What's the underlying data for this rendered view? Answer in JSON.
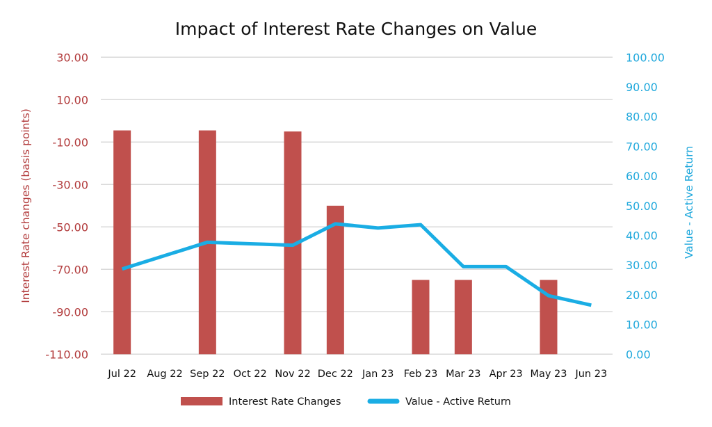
{
  "chart_data": {
    "type": "bar",
    "title": "Impact of Interest Rate Changes on Value",
    "categories": [
      "Jul 22",
      "Aug 22",
      "Sep 22",
      "Oct 22",
      "Nov 22",
      "Dec 22",
      "Jan 23",
      "Feb 23",
      "Mar 23",
      "Apr 23",
      "May 23",
      "Jun 23"
    ],
    "series": [
      {
        "name": "Interest Rate Changes",
        "type": "bar",
        "axis": "left",
        "color": "#C0504D",
        "values": [
          -4.5,
          null,
          -4.5,
          null,
          -5,
          -40,
          null,
          -75,
          -75,
          null,
          -75,
          null
        ]
      },
      {
        "name": "Value - Active Return",
        "type": "line",
        "axis": "right",
        "color": "#1AADE4",
        "values": [
          28.7,
          33.2,
          37.7,
          37.2,
          36.7,
          43.9,
          42.5,
          43.6,
          29.5,
          29.5,
          19.7,
          16.5
        ]
      }
    ],
    "xlabel": "",
    "ylabel_left": "Interest Rate changes (basis points)",
    "ylabel_right": "Value - Active Return",
    "ylim_left": [
      -110,
      30
    ],
    "ylim_right": [
      0,
      100
    ],
    "yticks_left": [
      "30.00",
      "10.00",
      "-10.00",
      "-30.00",
      "-50.00",
      "-70.00",
      "-90.00",
      "-110.00"
    ],
    "yticks_left_values": [
      30,
      10,
      -10,
      -30,
      -50,
      -70,
      -90,
      -110
    ],
    "yticks_right": [
      "100.00",
      "90.00",
      "80.00",
      "70.00",
      "60.00",
      "50.00",
      "40.00",
      "30.00",
      "20.00",
      "10.00",
      "0.00"
    ],
    "yticks_right_values": [
      100,
      90,
      80,
      70,
      60,
      50,
      40,
      30,
      20,
      10,
      0
    ],
    "grid": true,
    "legend_position": "bottom"
  },
  "colors": {
    "left_axis": "#B23B3C",
    "right_axis": "#1FA8DC",
    "bar": "#C0504D",
    "line": "#1AADE4",
    "grid": "#D9D9D9"
  }
}
